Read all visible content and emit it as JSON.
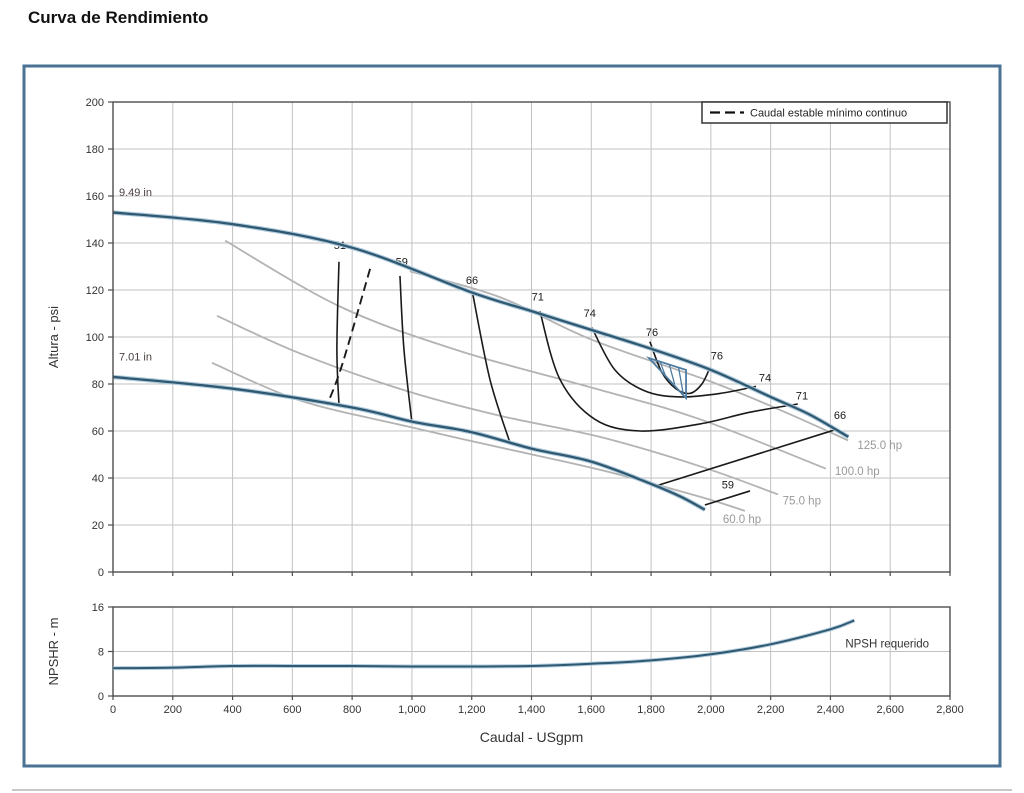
{
  "page_title": "Curva de Rendimiento",
  "legend": {
    "label": "Caudal estable mínimo continuo"
  },
  "colors": {
    "curve": "#2f5871",
    "curve_halo": "#aac7da",
    "contour": "#1a1a1a",
    "power_line": "#b3b3b3",
    "power_label": "#999999",
    "grid": "#c2c2c2",
    "frame": "#4a7294",
    "plot_border": "#4d4d4d",
    "marker": "#4e7ca1",
    "text": "#333333",
    "curve_label": "#4a3f3f"
  },
  "chart_data": {
    "type": "line",
    "xlabel": "Caudal - USgpm",
    "xlim": [
      0,
      2800
    ],
    "x_ticks": [
      "0",
      "200",
      "400",
      "600",
      "800",
      "1,000",
      "1,200",
      "1,400",
      "1,600",
      "1,800",
      "2,000",
      "2,200",
      "2,400",
      "2,600",
      "2,800"
    ],
    "main": {
      "ylabel": "Altura - psi",
      "ylim": [
        0,
        200
      ],
      "y_ticks": [
        0,
        20,
        40,
        60,
        80,
        100,
        120,
        140,
        160,
        180,
        200
      ],
      "impeller_curves": [
        {
          "label": "9.49 in",
          "label_at": [
            20,
            160
          ],
          "points": [
            [
              0,
              153
            ],
            [
              400,
              148
            ],
            [
              800,
              138
            ],
            [
              1200,
              119
            ],
            [
              1400,
              111
            ],
            [
              1600,
              103
            ],
            [
              1800,
              95
            ],
            [
              2000,
              86
            ],
            [
              2200,
              74.5
            ],
            [
              2330,
              67
            ],
            [
              2460,
              57.5
            ]
          ]
        },
        {
          "label": "7.01 in",
          "label_at": [
            20,
            90
          ],
          "points": [
            [
              0,
              83
            ],
            [
              400,
              78
            ],
            [
              800,
              70
            ],
            [
              1000,
              64
            ],
            [
              1200,
              59.5
            ],
            [
              1400,
              52.5
            ],
            [
              1600,
              47
            ],
            [
              1800,
              37.5
            ],
            [
              1900,
              32
            ],
            [
              1980,
              26.5
            ]
          ]
        }
      ],
      "efficiency_contours": [
        {
          "value": "51",
          "points": [
            [
              756,
              132
            ],
            [
              749,
              95
            ],
            [
              756,
              71
            ]
          ],
          "label": [
            759,
            139
          ]
        },
        {
          "value": "59",
          "points": [
            [
              960,
              126
            ],
            [
              973,
              95
            ],
            [
              1000,
              63.5
            ]
          ],
          "label": [
            966,
            132
          ]
        },
        {
          "value": "66",
          "points": [
            [
              1204,
              118
            ],
            [
              1261,
              82
            ],
            [
              1328,
              55
            ]
          ],
          "label": [
            1201,
            124
          ]
        },
        {
          "value": "71",
          "points": [
            [
              1428,
              111
            ],
            [
              1495,
              82
            ],
            [
              1612,
              65
            ],
            [
              1763,
              60
            ],
            [
              1964,
              63
            ],
            [
              2131,
              68
            ],
            [
              2291,
              71.5
            ]
          ],
          "label": [
            1421,
            117
          ]
        },
        {
          "value": "74",
          "points": [
            [
              1602,
              104
            ],
            [
              1679,
              86
            ],
            [
              1780,
              77
            ],
            [
              1897,
              74.5
            ],
            [
              2031,
              76
            ],
            [
              2151,
              79
            ]
          ],
          "label": [
            1595,
            110
          ]
        },
        {
          "value": "76",
          "points": [
            [
              1796,
              98
            ],
            [
              1836,
              85
            ],
            [
              1883,
              78
            ],
            [
              1930,
              76
            ],
            [
              1970,
              80
            ],
            [
              1997,
              87
            ]
          ],
          "label": [
            1803,
            102
          ]
        },
        {
          "value": "76",
          "points": [],
          "label": [
            2020,
            92
          ]
        },
        {
          "value": "74",
          "points": [],
          "label": [
            2181,
            82.5
          ]
        },
        {
          "value": "71",
          "points": [],
          "label": [
            2305,
            75
          ]
        },
        {
          "value": "66",
          "points": [
            [
              1813,
              36.5
            ],
            [
              2415,
              60.5
            ]
          ],
          "label": [
            2432,
            66.5
          ]
        },
        {
          "value": "59",
          "points": [
            [
              1980,
              28.5
            ],
            [
              2131,
              34.5
            ]
          ],
          "label": [
            2057,
            37
          ]
        }
      ],
      "min_flow_line": {
        "points": [
          [
            860,
            129
          ],
          [
            766,
            88
          ],
          [
            716,
            71
          ]
        ]
      },
      "power_lines": [
        {
          "label": "60.0 hp",
          "label_at": [
            2040,
            22.5
          ],
          "points": [
            [
              331,
              89
            ],
            [
              626,
              73
            ],
            [
              983,
              62
            ],
            [
              1294,
              53
            ],
            [
              1629,
              43.5
            ],
            [
              1964,
              32
            ],
            [
              2114,
              26
            ]
          ]
        },
        {
          "label": "75.0 hp",
          "label_at": [
            2240,
            30.5
          ],
          "points": [
            [
              348,
              109
            ],
            [
              626,
              93
            ],
            [
              983,
              77
            ],
            [
              1294,
              66.5
            ],
            [
              1629,
              57.5
            ],
            [
              1964,
              45
            ],
            [
              2225,
              33
            ]
          ]
        },
        {
          "label": "100.0 hp",
          "label_at": [
            2415,
            43
          ],
          "points": [
            [
              375,
              141
            ],
            [
              759,
              113
            ],
            [
              1161,
              94
            ],
            [
              1629,
              77.5
            ],
            [
              1964,
              65
            ],
            [
              2385,
              44
            ]
          ]
        },
        {
          "label": "125.0 hp",
          "label_at": [
            2490,
            54
          ],
          "points": [
            [
              993,
              128
            ],
            [
              1294,
              117
            ],
            [
              1599,
              99
            ],
            [
              2000,
              81
            ],
            [
              2231,
              69
            ],
            [
              2459,
              56
            ]
          ]
        }
      ],
      "duty_marker": {
        "vertices": [
          [
            1793,
            91
          ],
          [
            1917,
            86
          ],
          [
            1917,
            74
          ]
        ],
        "hatch": [
          [
            [
              1830,
              89.5
            ],
            [
              1848,
              83.5
            ]
          ],
          [
            [
              1861,
              88.3
            ],
            [
              1879,
              79.8
            ]
          ],
          [
            [
              1892,
              87
            ],
            [
              1908,
              75.6
            ]
          ]
        ]
      }
    },
    "npsh": {
      "ylabel": "NPSHR - m",
      "ylim": [
        0,
        16
      ],
      "y_ticks": [
        0,
        8,
        16
      ],
      "curve_label": "NPSH requerido",
      "label_at": [
        2730,
        9.4
      ],
      "points": [
        [
          0,
          5
        ],
        [
          200,
          5.1
        ],
        [
          400,
          5.4
        ],
        [
          600,
          5.4
        ],
        [
          800,
          5.4
        ],
        [
          1000,
          5.3
        ],
        [
          1200,
          5.3
        ],
        [
          1400,
          5.4
        ],
        [
          1600,
          5.8
        ],
        [
          1800,
          6.4
        ],
        [
          2000,
          7.5
        ],
        [
          2200,
          9.3
        ],
        [
          2400,
          12
        ],
        [
          2480,
          13.6
        ]
      ]
    }
  }
}
